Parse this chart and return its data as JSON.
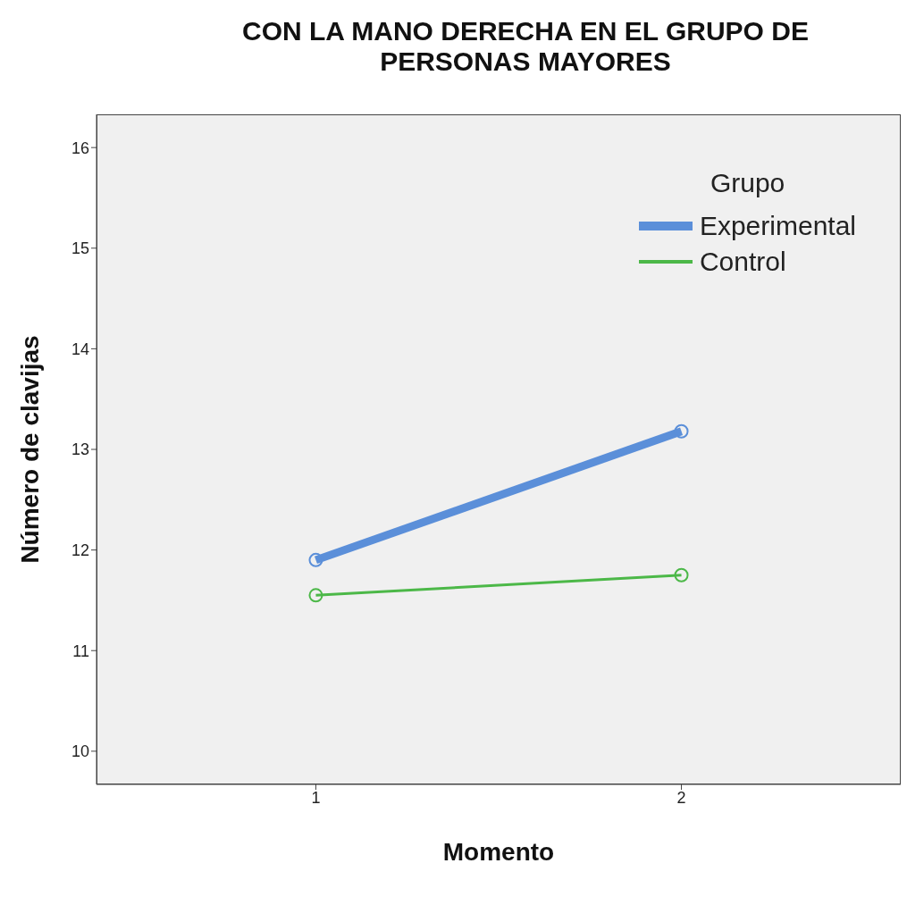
{
  "chart_data": {
    "type": "line",
    "title": "CON LA MANO DERECHA EN EL GRUPO DE PERSONAS MAYORES",
    "xlabel": "Momento",
    "ylabel": "Número de clavijas",
    "legend_title": "Grupo",
    "x": [
      1,
      2
    ],
    "xlim": [
      0.4,
      2.6
    ],
    "xticks": [
      1,
      2
    ],
    "ylim": [
      9.67,
      16.33
    ],
    "yticks": [
      10,
      11,
      12,
      13,
      14,
      15,
      16
    ],
    "series": [
      {
        "name": "Experimental",
        "color": "#5b8fd9",
        "values": [
          11.9,
          13.18
        ]
      },
      {
        "name": "Control",
        "color": "#4cb848",
        "values": [
          11.55,
          11.75
        ]
      }
    ],
    "marker": "circle",
    "line_style": "solid",
    "grid": false,
    "legend": "top right"
  }
}
